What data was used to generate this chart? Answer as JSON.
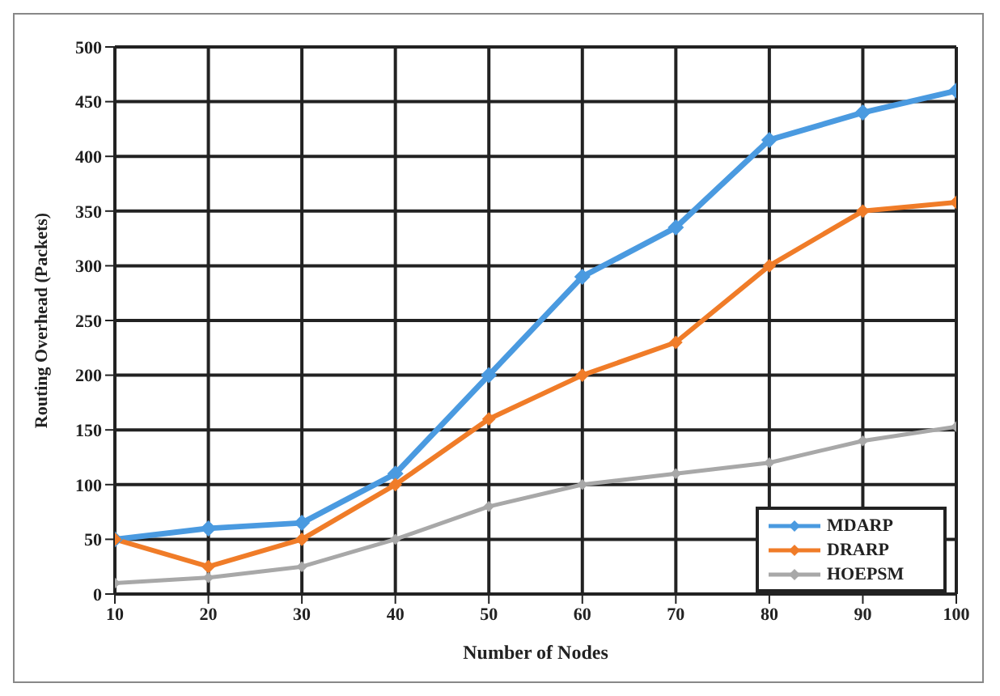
{
  "chart_data": {
    "type": "line",
    "xlabel": "Number of Nodes",
    "ylabel": "Routing Overhead (Packets)",
    "x": [
      10,
      20,
      30,
      40,
      50,
      60,
      70,
      80,
      90,
      100
    ],
    "series": [
      {
        "name": "MDARP",
        "color": "#4a9ae0",
        "values": [
          50,
          60,
          65,
          110,
          200,
          290,
          335,
          415,
          440,
          460
        ]
      },
      {
        "name": "DRARP",
        "color": "#f07c28",
        "values": [
          50,
          25,
          50,
          100,
          160,
          200,
          230,
          300,
          350,
          358
        ]
      },
      {
        "name": "HOEPSM",
        "color": "#a8a8a8",
        "values": [
          10,
          15,
          25,
          50,
          80,
          100,
          110,
          120,
          140,
          153
        ]
      }
    ],
    "xlim": [
      10,
      100
    ],
    "xticks": [
      10,
      20,
      30,
      40,
      50,
      60,
      70,
      80,
      90,
      100
    ],
    "ylim": [
      0,
      500
    ],
    "yticks": [
      0,
      50,
      100,
      150,
      200,
      250,
      300,
      350,
      400,
      450,
      500
    ],
    "grid": true,
    "legend": "bottom right",
    "marker": "diamond",
    "line_style": "solid"
  }
}
